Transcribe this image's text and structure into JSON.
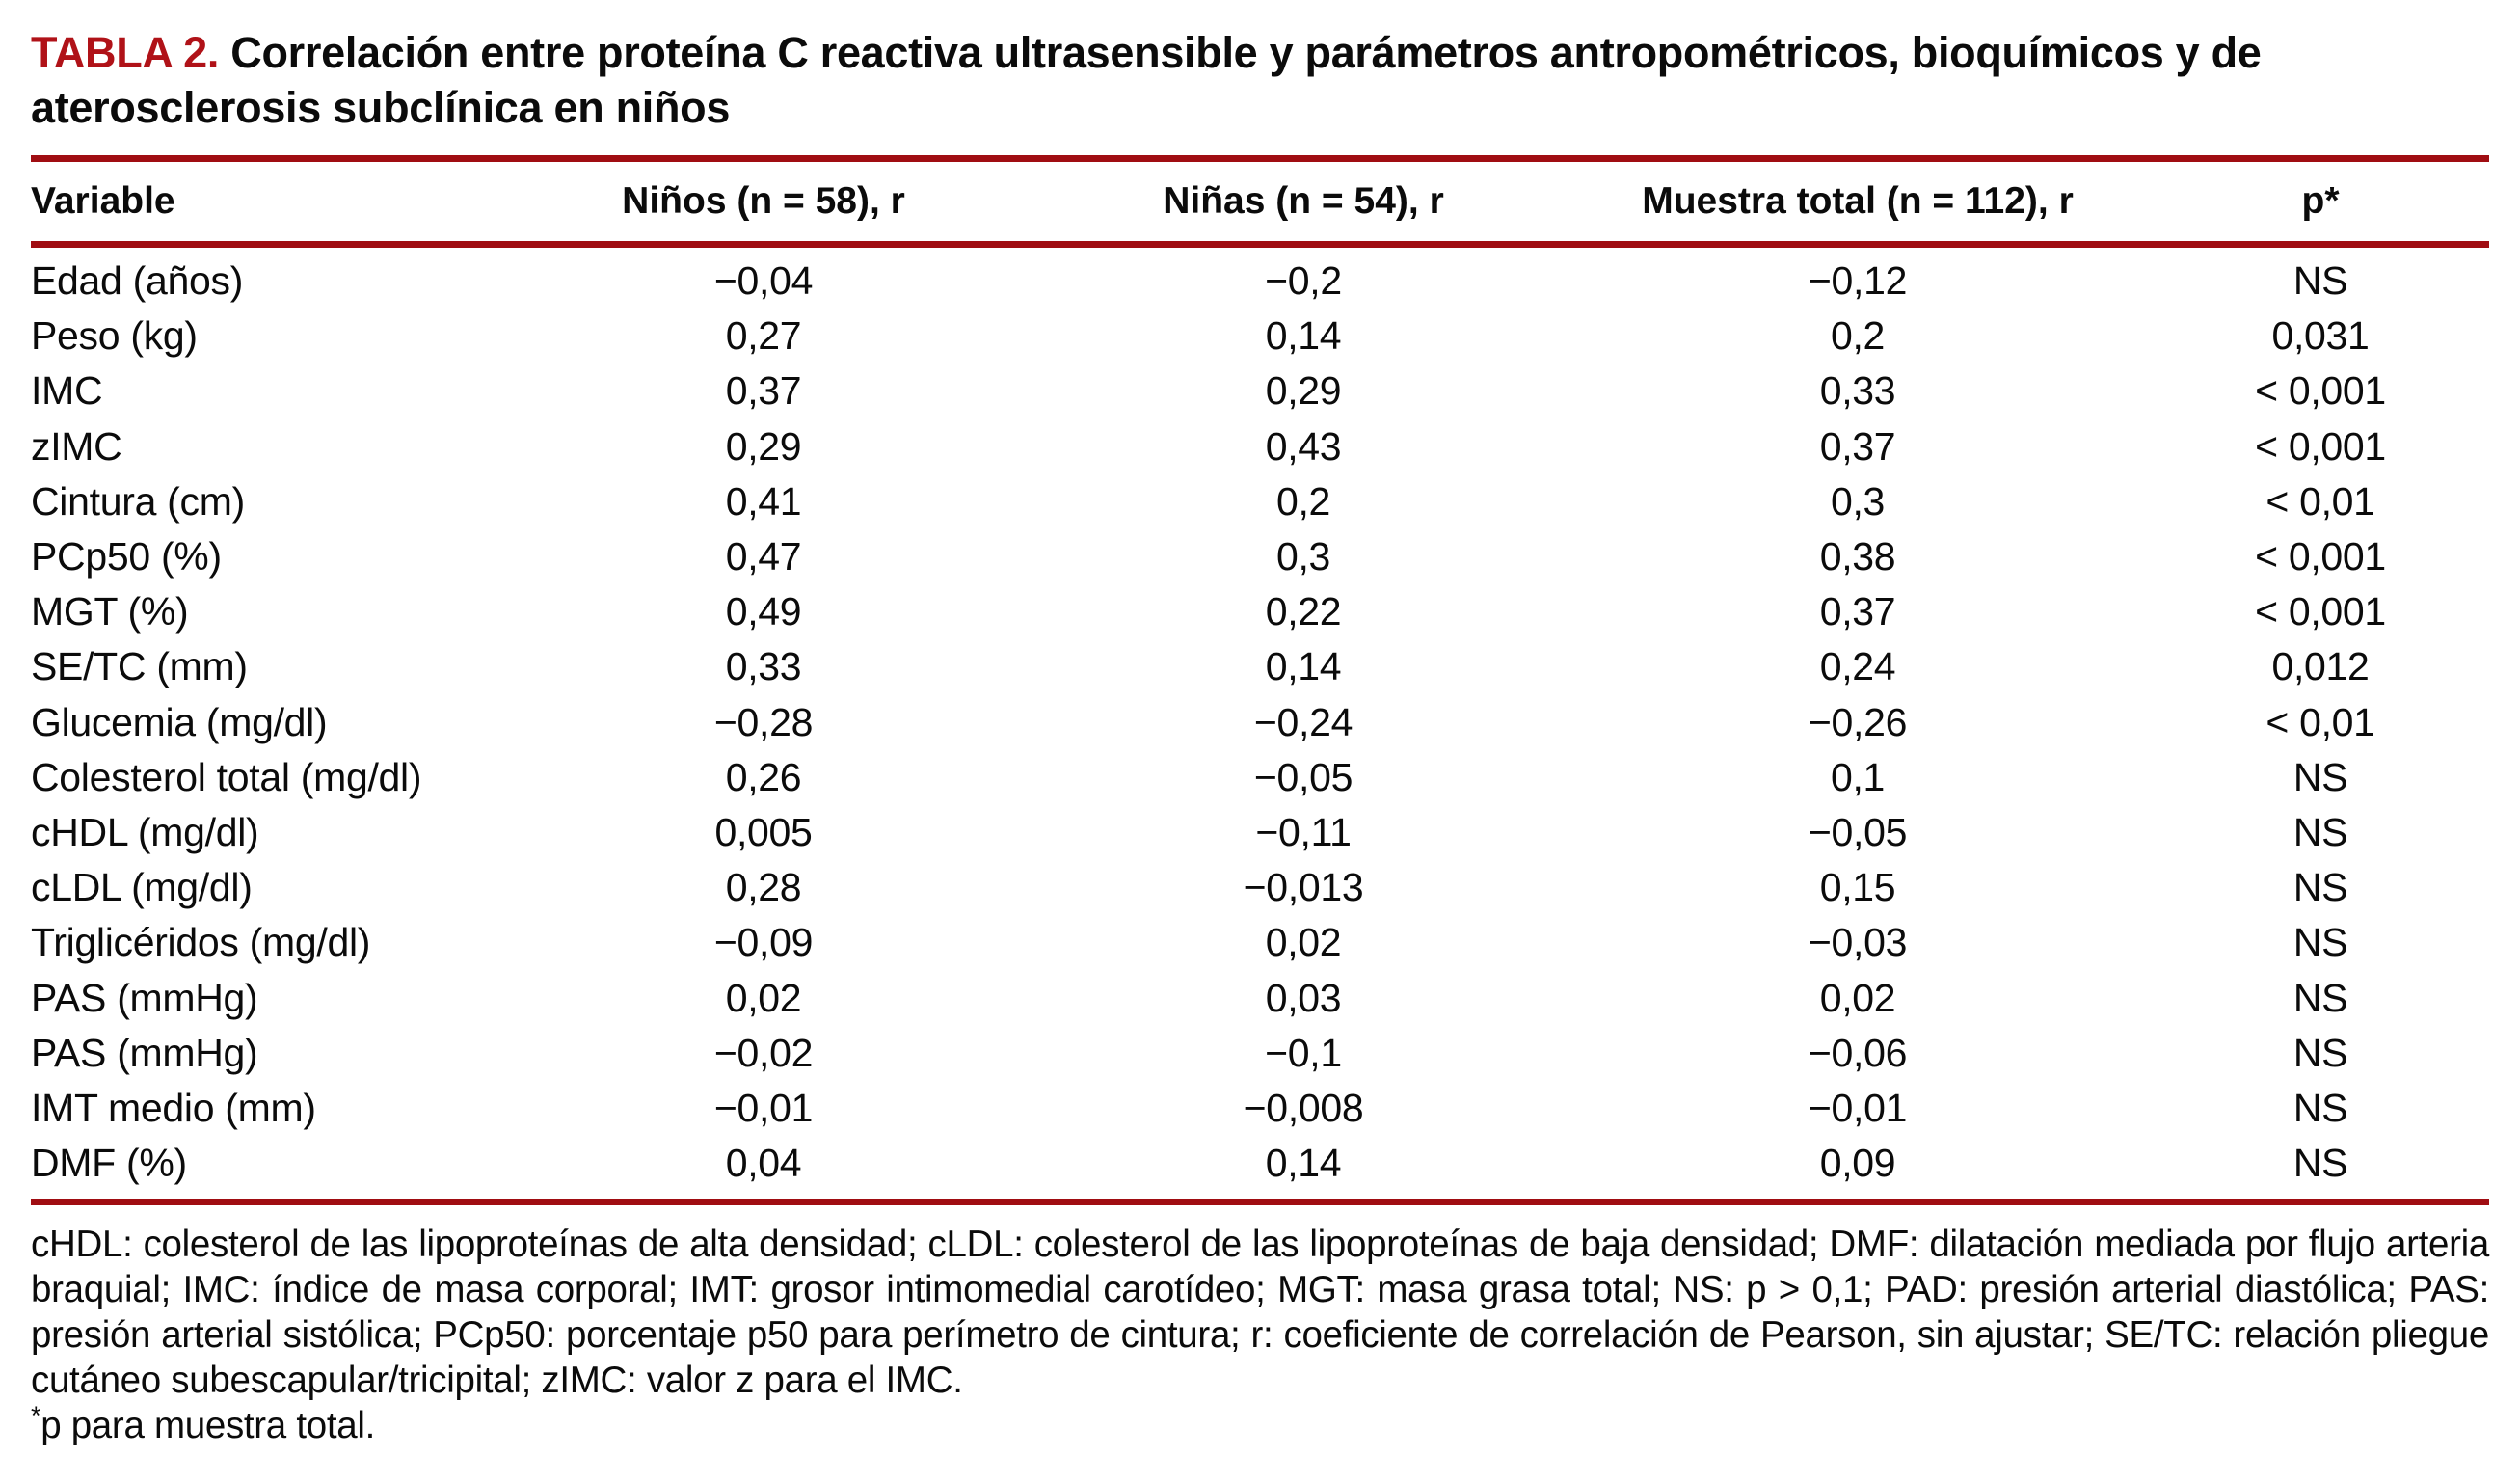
{
  "title": {
    "label": "TABLA 2.",
    "text": "Correlación entre proteína C reactiva ultrasensible y parámetros antropométricos, bioquímicos y de aterosclerosis subclínica en niños"
  },
  "table": {
    "columns": [
      "Variable",
      "Niños (n = 58), r",
      "Niñas (n = 54), r",
      "Muestra total (n = 112), r",
      "p*"
    ],
    "rows": [
      [
        "Edad (años)",
        "−0,04",
        "−0,2",
        "−0,12",
        "NS"
      ],
      [
        "Peso (kg)",
        "0,27",
        "0,14",
        "0,2",
        "0,031"
      ],
      [
        "IMC",
        "0,37",
        "0,29",
        "0,33",
        "< 0,001"
      ],
      [
        "zIMC",
        "0,29",
        "0,43",
        "0,37",
        "< 0,001"
      ],
      [
        "Cintura (cm)",
        "0,41",
        "0,2",
        "0,3",
        "< 0,01"
      ],
      [
        "PCp50 (%)",
        "0,47",
        "0,3",
        "0,38",
        "< 0,001"
      ],
      [
        "MGT (%)",
        "0,49",
        "0,22",
        "0,37",
        "< 0,001"
      ],
      [
        "SE/TC (mm)",
        "0,33",
        "0,14",
        "0,24",
        "0,012"
      ],
      [
        "Glucemia (mg/dl)",
        "−0,28",
        "−0,24",
        "−0,26",
        "< 0,01"
      ],
      [
        "Colesterol total (mg/dl)",
        "0,26",
        "−0,05",
        "0,1",
        "NS"
      ],
      [
        "cHDL (mg/dl)",
        "0,005",
        "−0,11",
        "−0,05",
        "NS"
      ],
      [
        "cLDL (mg/dl)",
        "0,28",
        "−0,013",
        "0,15",
        "NS"
      ],
      [
        "Triglicéridos (mg/dl)",
        "−0,09",
        "0,02",
        "−0,03",
        "NS"
      ],
      [
        "PAS (mmHg)",
        "0,02",
        "0,03",
        "0,02",
        "NS"
      ],
      [
        "PAS (mmHg)",
        "−0,02",
        "−0,1",
        "−0,06",
        "NS"
      ],
      [
        "IMT medio (mm)",
        "−0,01",
        "−0,008",
        "−0,01",
        "NS"
      ],
      [
        "DMF (%)",
        "0,04",
        "0,14",
        "0,09",
        "NS"
      ]
    ]
  },
  "footnotes": {
    "abbreviations": "cHDL: colesterol de las lipoproteínas de alta densidad; cLDL: colesterol de las lipoproteínas de baja densidad; DMF: dilatación mediada por flujo arteria braquial; IMC: índice de masa corporal; IMT: grosor intimomedial carotídeo; MGT: masa grasa total; NS: p > 0,1; PAD: presión arterial diastólica; PAS: presión arterial sistólica; PCp50: porcentaje p50 para perímetro de cintura; r: coeficiente de correlación de Pearson, sin ajustar; SE/TC: relación pliegue cutáneo subescapular/tricipital; zIMC: valor z para el IMC.",
    "star": "*",
    "star_note": "p para muestra total."
  },
  "colors": {
    "accent_red": "#b01218",
    "rule_red": "#a00d12"
  },
  "chart_data": {
    "type": "table",
    "title": "TABLA 2. Correlación entre proteína C reactiva ultrasensible y parámetros antropométricos, bioquímicos y de aterosclerosis subclínica en niños",
    "columns": [
      "Variable",
      "Niños (n = 58), r",
      "Niñas (n = 54), r",
      "Muestra total (n = 112), r",
      "p*"
    ],
    "rows": [
      [
        "Edad (años)",
        "−0,04",
        "−0,2",
        "−0,12",
        "NS"
      ],
      [
        "Peso (kg)",
        "0,27",
        "0,14",
        "0,2",
        "0,031"
      ],
      [
        "IMC",
        "0,37",
        "0,29",
        "0,33",
        "< 0,001"
      ],
      [
        "zIMC",
        "0,29",
        "0,43",
        "0,37",
        "< 0,001"
      ],
      [
        "Cintura (cm)",
        "0,41",
        "0,2",
        "0,3",
        "< 0,01"
      ],
      [
        "PCp50 (%)",
        "0,47",
        "0,3",
        "0,38",
        "< 0,001"
      ],
      [
        "MGT (%)",
        "0,49",
        "0,22",
        "0,37",
        "< 0,001"
      ],
      [
        "SE/TC (mm)",
        "0,33",
        "0,14",
        "0,24",
        "0,012"
      ],
      [
        "Glucemia (mg/dl)",
        "−0,28",
        "−0,24",
        "−0,26",
        "< 0,01"
      ],
      [
        "Colesterol total (mg/dl)",
        "0,26",
        "−0,05",
        "0,1",
        "NS"
      ],
      [
        "cHDL (mg/dl)",
        "0,005",
        "−0,11",
        "−0,05",
        "NS"
      ],
      [
        "cLDL (mg/dl)",
        "0,28",
        "−0,013",
        "0,15",
        "NS"
      ],
      [
        "Triglicéridos (mg/dl)",
        "−0,09",
        "0,02",
        "−0,03",
        "NS"
      ],
      [
        "PAS (mmHg)",
        "0,02",
        "0,03",
        "0,02",
        "NS"
      ],
      [
        "PAS (mmHg)",
        "−0,02",
        "−0,1",
        "−0,06",
        "NS"
      ],
      [
        "IMT medio (mm)",
        "−0,01",
        "−0,008",
        "−0,01",
        "NS"
      ],
      [
        "DMF (%)",
        "0,04",
        "0,14",
        "0,09",
        "NS"
      ]
    ]
  }
}
